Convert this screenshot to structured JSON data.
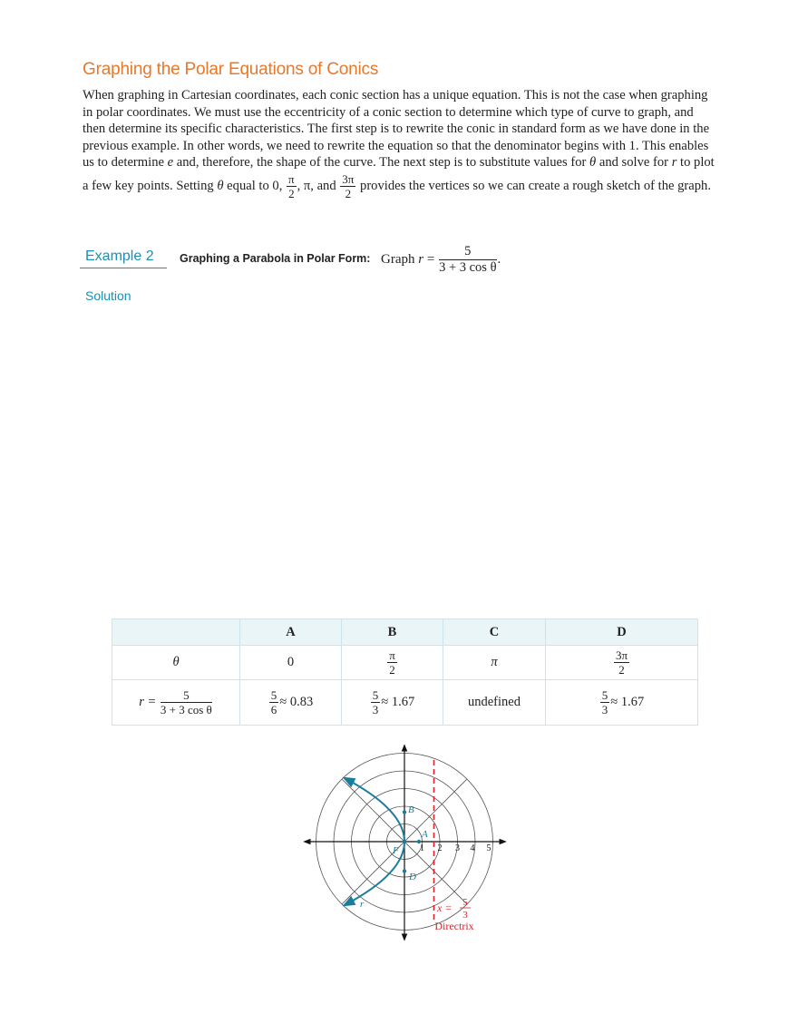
{
  "section": {
    "title": "Graphing the Polar Equations of Conics",
    "para_lines": [
      "When graphing in Cartesian coordinates, each conic section has a unique equation. This is not the case when graphing",
      "in polar coordinates. We must use the eccentricity of a conic section to determine which type of curve to graph, and",
      "then determine its specific characteristics. The first step is to rewrite the conic in standard form as we have done in the",
      "previous example. In other words, we need to rewrite the equation so that the denominator begins with 1. This enables"
    ],
    "line5": {
      "a": "us to determine ",
      "e": "e",
      "b": " and, therefore, the shape of the curve. The next step is to substitute values for ",
      "theta": "θ",
      "c": " and solve for ",
      "r": "r",
      "d": " to plot"
    },
    "line6": {
      "a": "a few key points. Setting ",
      "theta": "θ",
      "b": " equal to 0, ",
      "frac1_num": "π",
      "frac1_den": "2",
      "c": ", π, and ",
      "frac2_num": "3π",
      "frac2_den": "2",
      "d": " provides the vertices so we can create a rough sketch of the graph."
    }
  },
  "example": {
    "label": "Example  2",
    "title": "Graphing a Parabola in Polar Form:",
    "eq_prefix": "Graph ",
    "eq_r": "r",
    "eq_eq": " = ",
    "eq_num": "5",
    "eq_den": "3 + 3 cos θ",
    "eq_end": ".",
    "solution_label": "Solution"
  },
  "table": {
    "headers": [
      "",
      "A",
      "B",
      "C",
      "D"
    ],
    "row_theta": {
      "label": "θ",
      "A": "0",
      "B_num": "π",
      "B_den": "2",
      "C": "π",
      "D_num": "3π",
      "D_den": "2"
    },
    "row_r": {
      "label_r": "r =",
      "label_num": "5",
      "label_den": "3 + 3 cos θ",
      "A_num": "5",
      "A_den": "6",
      "A_approx": "≈ 0.83",
      "B_num": "5",
      "B_den": "3",
      "B_approx": "≈ 1.67",
      "C": "undefined",
      "D_num": "5",
      "D_den": "3",
      "D_approx": "≈ 1.67"
    }
  },
  "graph": {
    "tick_labels": [
      "1",
      "2",
      "3",
      "4",
      "5"
    ],
    "point_labels": {
      "A": "A",
      "B": "B",
      "D": "D",
      "F": "F",
      "r": "r"
    },
    "directrix_eq_x": "x =",
    "directrix_eq_num": "5",
    "directrix_eq_den": "3",
    "directrix_label": "Directrix",
    "colors": {
      "curve": "#1a7d99",
      "directrix": "#d9232e",
      "grid": "#555555",
      "axis": "#111111"
    }
  }
}
